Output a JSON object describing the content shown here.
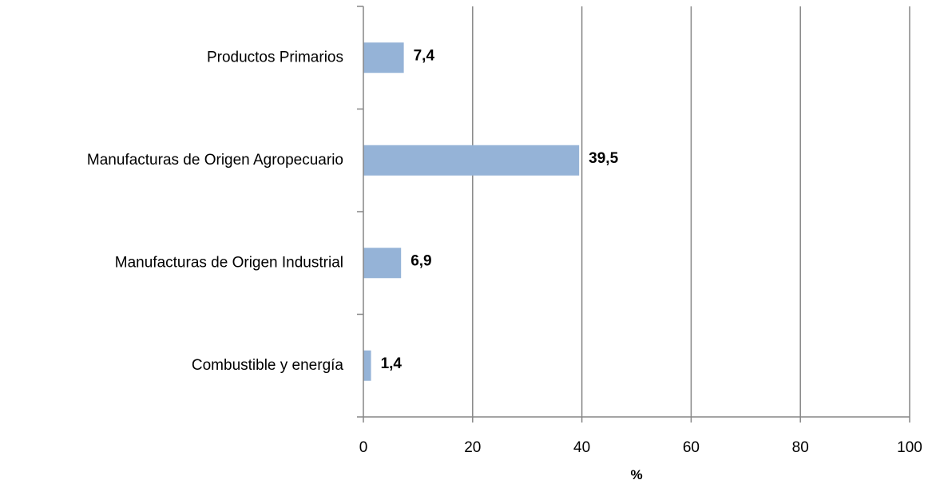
{
  "chart_data": {
    "type": "bar",
    "orientation": "horizontal",
    "categories": [
      "Productos Primarios",
      "Manufacturas de Origen Agropecuario",
      "Manufacturas de Origen Industrial",
      "Combustible y energía"
    ],
    "values": [
      7.4,
      39.5,
      6.9,
      1.4
    ],
    "data_labels": [
      "7,4",
      "39,5",
      "6,9",
      "1,4"
    ],
    "xlabel": "%",
    "xlim": [
      0,
      100
    ],
    "x_ticks": [
      0,
      20,
      40,
      60,
      80,
      100
    ],
    "x_tick_labels": [
      "0",
      "20",
      "40",
      "60",
      "80",
      "100"
    ],
    "grid": "vertical",
    "legend": "none",
    "bar_color": "#95b3d7",
    "grid_color": "#868686"
  }
}
